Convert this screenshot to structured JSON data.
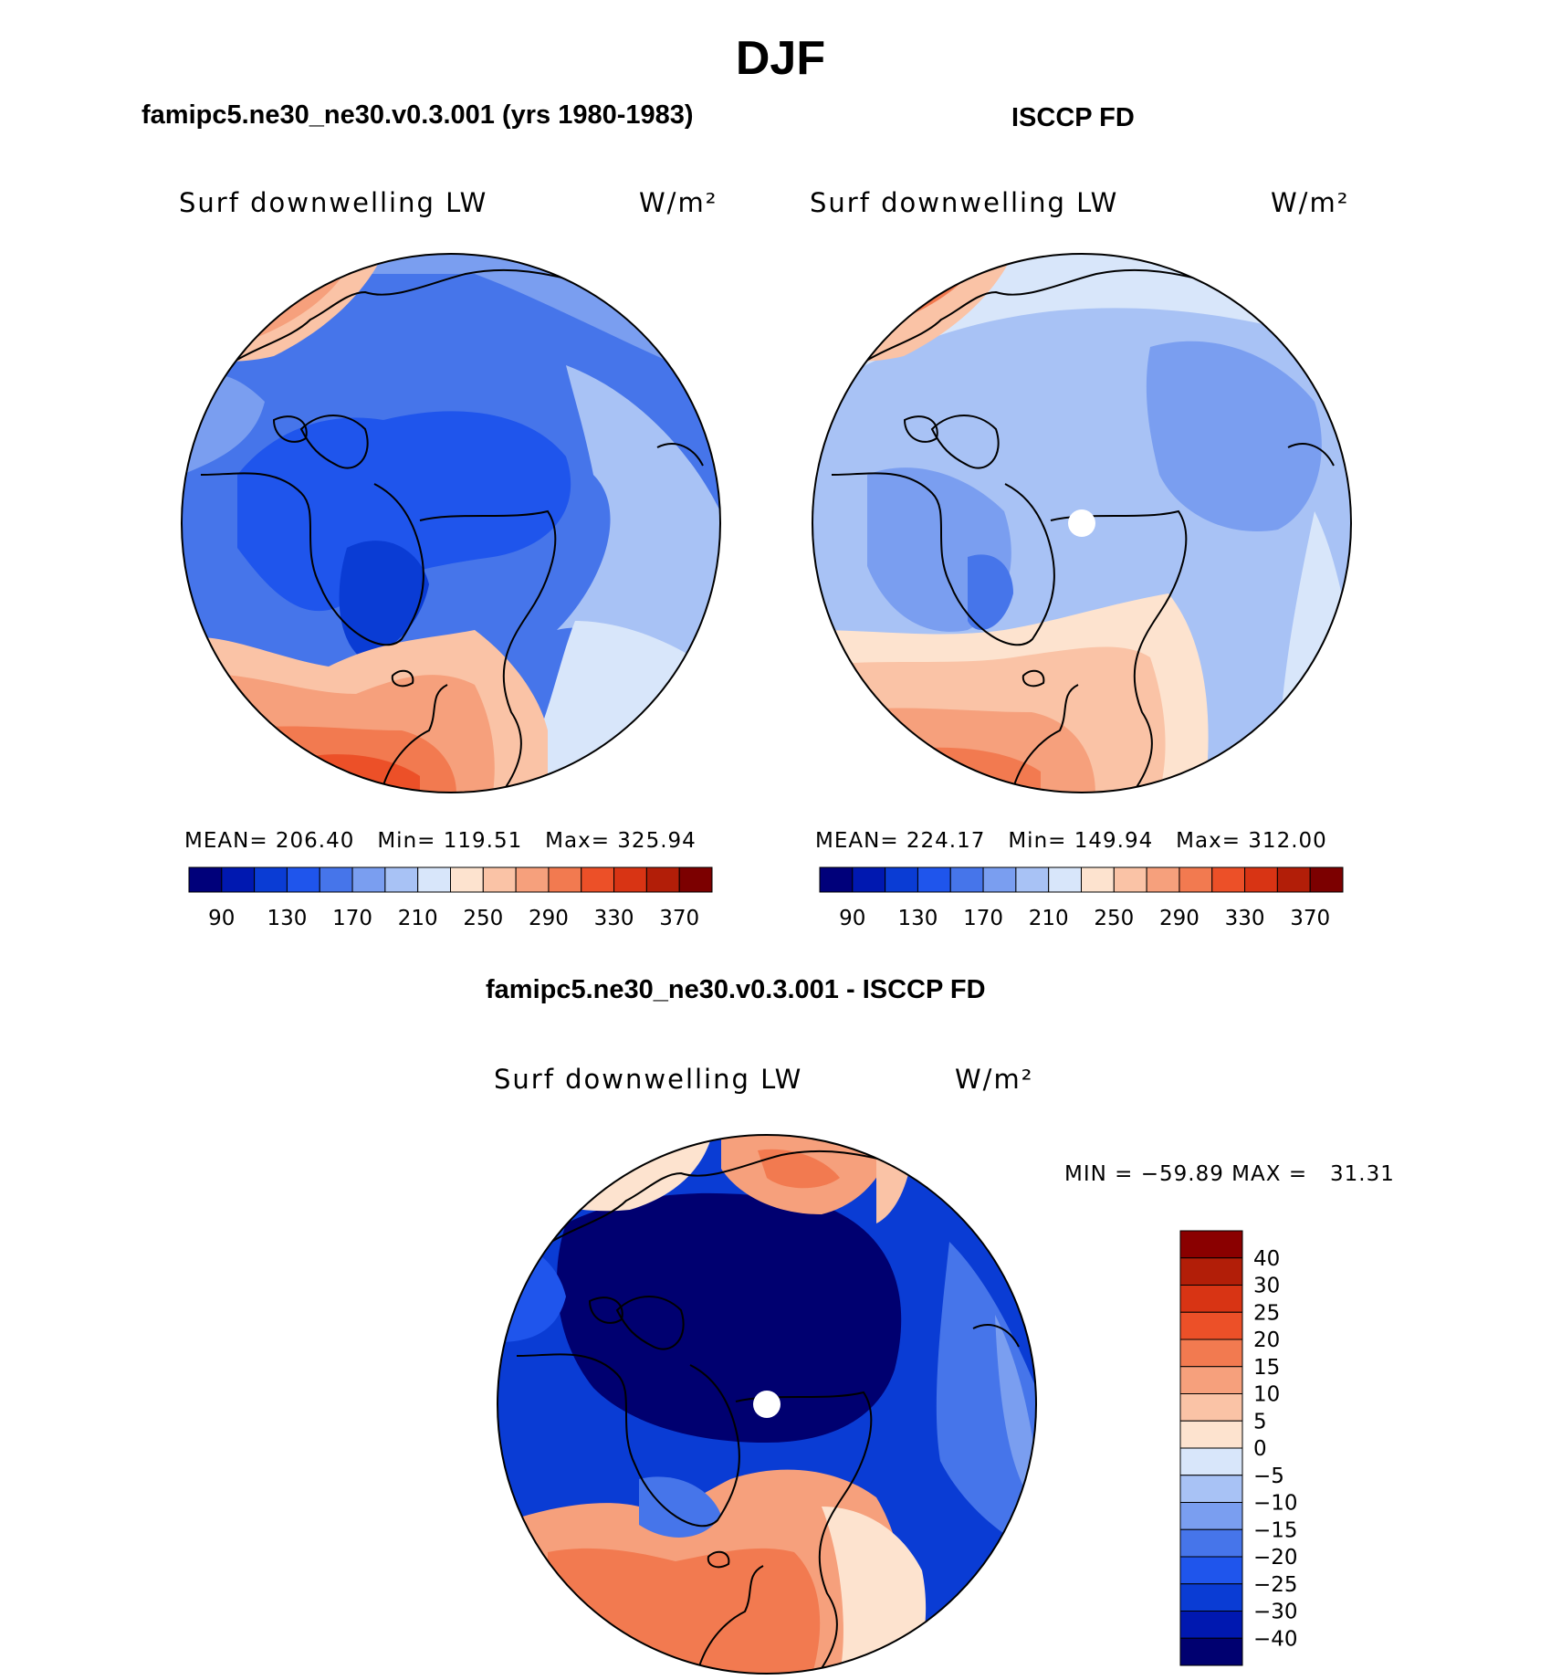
{
  "suptitle": "DJF",
  "panels": {
    "model": {
      "title": "famipc5.ne30_ne30.v0.3.001 (yrs 1980-1983)",
      "variable": "Surf downwelling LW",
      "units": "W/m²",
      "stats": {
        "mean_label": "MEAN=",
        "mean": "206.40",
        "min_label": "Min=",
        "min": "119.51",
        "max_label": "Max=",
        "max": "325.94"
      }
    },
    "obs": {
      "title": "ISCCP FD",
      "variable": "Surf downwelling LW",
      "units": "W/m²",
      "stats": {
        "mean_label": "MEAN=",
        "mean": "224.17",
        "min_label": "Min=",
        "min": "149.94",
        "max_label": "Max=",
        "max": "312.00"
      }
    },
    "diff": {
      "title": "famipc5.ne30_ne30.v0.3.001 - ISCCP FD",
      "variable": "Surf downwelling LW",
      "units": "W/m²",
      "stats": {
        "min_label": "MIN =",
        "min": "−59.89",
        "max_label": "MAX =",
        "max": "31.31"
      }
    }
  },
  "colors": {
    "abs_scale": [
      "#00007a",
      "#0018b0",
      "#0a3cd4",
      "#1f55ec",
      "#4675ea",
      "#7a9ef0",
      "#a8c2f5",
      "#d8e6fa",
      "#fde3cf",
      "#fac3a6",
      "#f6a07c",
      "#f27a50",
      "#ec5028",
      "#d83414",
      "#b21e08",
      "#7c0000"
    ],
    "diff_scale": [
      "#000070",
      "#0018b0",
      "#0a3cd4",
      "#1f55ec",
      "#4675ea",
      "#7a9ef0",
      "#a8c2f5",
      "#d8e6fa",
      "#fde3cf",
      "#fac3a6",
      "#f6a07c",
      "#f27a50",
      "#ec5028",
      "#d83414",
      "#b21e08",
      "#8a0000"
    ]
  },
  "chart_data": [
    {
      "type": "heatmap",
      "projection": "north polar stereographic",
      "title": "famipc5.ne30_ne30.v0.3.001 (yrs 1980-1983)",
      "variable": "Surf downwelling LW",
      "units": "W/m²",
      "mean": 206.4,
      "min": 119.51,
      "max": 325.94,
      "colorbar": {
        "orientation": "horizontal",
        "ticks": [
          "90",
          "130",
          "170",
          "210",
          "250",
          "290",
          "330",
          "370"
        ],
        "levels": [
          90,
          110,
          130,
          150,
          170,
          190,
          210,
          230,
          250,
          270,
          290,
          310,
          330,
          350,
          370
        ]
      }
    },
    {
      "type": "heatmap",
      "projection": "north polar stereographic",
      "title": "ISCCP FD",
      "variable": "Surf downwelling LW",
      "units": "W/m²",
      "mean": 224.17,
      "min": 149.94,
      "max": 312.0,
      "colorbar": {
        "orientation": "horizontal",
        "ticks": [
          "90",
          "130",
          "170",
          "210",
          "250",
          "290",
          "330",
          "370"
        ],
        "levels": [
          90,
          110,
          130,
          150,
          170,
          190,
          210,
          230,
          250,
          270,
          290,
          310,
          330,
          350,
          370
        ]
      }
    },
    {
      "type": "heatmap",
      "projection": "north polar stereographic",
      "title": "famipc5.ne30_ne30.v0.3.001 - ISCCP FD",
      "variable": "Surf downwelling LW",
      "units": "W/m²",
      "min": -59.89,
      "max": 31.31,
      "colorbar": {
        "orientation": "vertical",
        "ticks": [
          "40",
          "30",
          "25",
          "20",
          "15",
          "10",
          "5",
          "0",
          "−5",
          "−10",
          "−15",
          "−20",
          "−25",
          "−30",
          "−40"
        ]
      }
    }
  ]
}
